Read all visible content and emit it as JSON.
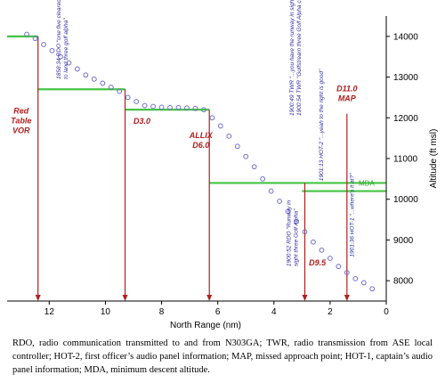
{
  "chart_data": {
    "type": "scatter",
    "title": "",
    "xlabel": "North Range (nm)",
    "ylabel": "Altitude (ft msl)",
    "x_reversed": true,
    "xlim": [
      13.5,
      0
    ],
    "ylim": [
      7500,
      14500
    ],
    "x_ticks": [
      12,
      10,
      8,
      6,
      4,
      2,
      0
    ],
    "y_ticks": [
      8000,
      9000,
      10000,
      11000,
      12000,
      13000,
      14000
    ],
    "grid": false,
    "series": [
      {
        "name": "",
        "color": "#6f6fc8",
        "x": [
          12.8,
          12.5,
          12.2,
          11.9,
          11.6,
          11.3,
          11.0,
          10.7,
          10.4,
          10.1,
          9.8,
          9.5,
          9.2,
          8.9,
          8.6,
          8.3,
          8.0,
          7.7,
          7.4,
          7.1,
          6.8,
          6.5,
          6.2,
          5.9,
          5.6,
          5.3,
          5.0,
          4.7,
          4.4,
          4.1,
          3.8,
          3.5,
          3.2,
          2.9,
          2.6,
          2.3,
          2.0,
          1.7,
          1.4,
          1.1,
          0.8,
          0.5
        ],
        "y": [
          14050,
          13950,
          13800,
          13650,
          13500,
          13350,
          13200,
          13050,
          12950,
          12850,
          12750,
          12650,
          12500,
          12400,
          12300,
          12280,
          12260,
          12250,
          12250,
          12240,
          12230,
          12200,
          12000,
          11800,
          11550,
          11300,
          11050,
          10800,
          10500,
          10200,
          9950,
          9700,
          9450,
          9200,
          8950,
          8750,
          8550,
          8350,
          8200,
          8050,
          7950,
          7800
        ]
      }
    ],
    "altitude_steps": {
      "color": "#44c444",
      "segments": [
        {
          "x1": 13.5,
          "x2": 12.4,
          "y": 14000
        },
        {
          "x1": 12.4,
          "x2": 9.3,
          "y": 12700
        },
        {
          "x1": 9.3,
          "x2": 6.3,
          "y": 12200
        },
        {
          "x1": 6.3,
          "x2": 0,
          "y": 10400
        }
      ]
    },
    "mda": {
      "label": "MDA",
      "y": 10200,
      "x1": 3.0,
      "x2": 0,
      "color": "#44c444"
    },
    "markers": [
      {
        "id": "red-table-vor",
        "x": 12.4,
        "lines": [
          "Red",
          "Table",
          "VOR"
        ]
      },
      {
        "id": "d3",
        "x": 9.3,
        "lines": [
          "D3.0"
        ]
      },
      {
        "id": "allix",
        "x": 6.3,
        "lines": [
          "ALLIX",
          "D6.0"
        ]
      },
      {
        "id": "d9-5",
        "x": 2.9,
        "lines": [
          "D9.5"
        ]
      },
      {
        "id": "d11-map",
        "x": 1.4,
        "lines": [
          "D11.0",
          "MAP"
        ]
      }
    ],
    "annotations": [
      {
        "id": "rdo-1858",
        "lines": [
          "1858:34 RDO \"one five cleared",
          "to land three golf alpha\""
        ]
      },
      {
        "id": "twr-1900",
        "lines": [
          "1900:49 TWR \"...you have the runway in sight?\"",
          "1900:54 TWR \"Gulfstream three Golf Alpha cleared visu Roger\""
        ]
      },
      {
        "id": "hot2-1901",
        "lines": [
          "1901:13 HOT-2 \"...yeah to the right is good\""
        ]
      },
      {
        "id": "rdo-1900",
        "lines": [
          "1900:52 RDO \"Runway in",
          "sight three Golf Alpha\""
        ]
      },
      {
        "id": "hot1-1901",
        "lines": [
          "1901:36 HOT-1 \"...where's it at?\""
        ]
      }
    ]
  },
  "caption": "RDO, radio communication transmitted to and from N303GA; TWR, radio transmission from ASE local controller; HOT-2, first officer’s audio panel information; MAP, missed approach point; HOT-1, captain’s audio panel information; MDA, minimum descent altitude."
}
